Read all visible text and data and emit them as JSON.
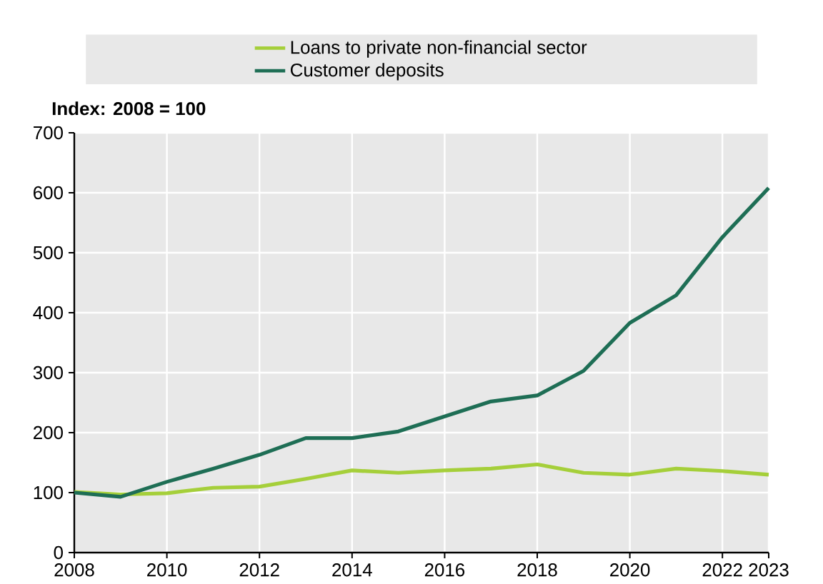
{
  "chart_data": {
    "type": "line",
    "ylabel": "Index: 2008 = 100",
    "x": [
      2008,
      2009,
      2010,
      2011,
      2012,
      2013,
      2014,
      2015,
      2016,
      2017,
      2018,
      2019,
      2020,
      2021,
      2022,
      2023
    ],
    "series": [
      {
        "name": "Loans to private non-financial sector",
        "color": "#a5cf3a",
        "values": [
          101,
          97,
          99,
          108,
          110,
          123,
          137,
          133,
          137,
          140,
          147,
          133,
          130,
          140,
          136,
          130
        ]
      },
      {
        "name": "Customer deposits",
        "color": "#1e6e55",
        "values": [
          100,
          93,
          118,
          140,
          163,
          191,
          191,
          202,
          227,
          252,
          262,
          303,
          383,
          429,
          526,
          608
        ]
      }
    ],
    "xlim": [
      2008,
      2023
    ],
    "xticks": [
      2008,
      2010,
      2012,
      2014,
      2016,
      2018,
      2020,
      2022,
      2023
    ],
    "ylim": [
      0,
      700
    ],
    "yticks": [
      0,
      100,
      200,
      300,
      400,
      500,
      600,
      700
    ],
    "grid": true,
    "legend": "top",
    "marker": "none",
    "line_style": "solid"
  }
}
